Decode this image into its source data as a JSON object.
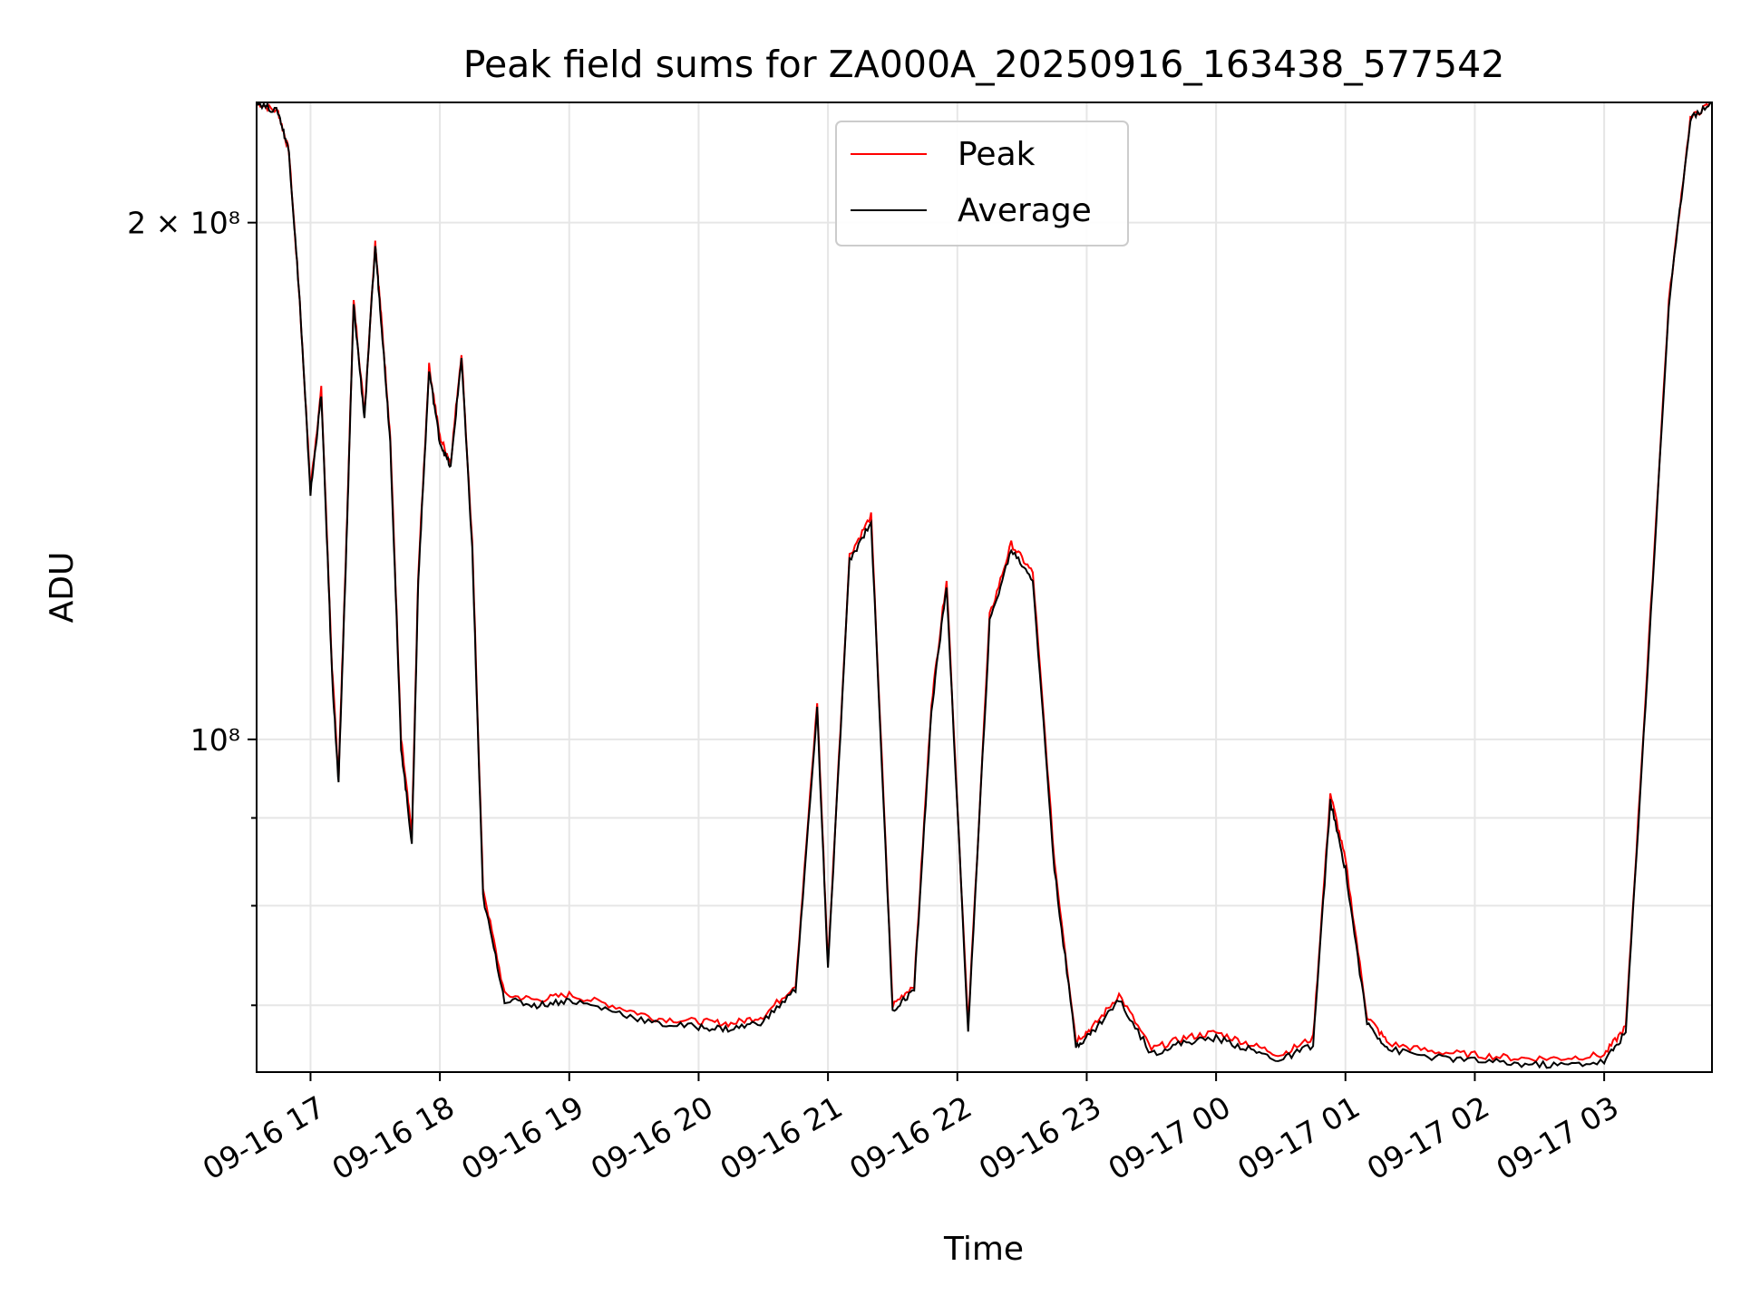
{
  "chart_data": {
    "type": "line",
    "title": "Peak field sums for ZA000A_20250916_163438_577542",
    "xlabel": "Time",
    "ylabel": "ADU",
    "yscale": "log",
    "ylim": [
      64000000,
      235000000
    ],
    "xlim": [
      "2025-09-16 16:35",
      "2025-09-17 03:50"
    ],
    "grid": true,
    "legend_position": "top-center",
    "x_ticks": [
      "09-16 17",
      "09-16 18",
      "09-16 19",
      "09-16 20",
      "09-16 21",
      "09-16 22",
      "09-16 23",
      "09-17 00",
      "09-17 01",
      "09-17 02",
      "09-17 03"
    ],
    "y_ticks": [
      {
        "label": "2 × 10⁸",
        "value": 200000000
      },
      {
        "label": "10⁸",
        "value": 100000000
      }
    ],
    "series": [
      {
        "name": "Peak",
        "color": "#ff0000",
        "x": [
          "2025-09-16 16:35",
          "2025-09-16 16:45",
          "2025-09-16 16:50",
          "2025-09-16 16:55",
          "2025-09-16 17:00",
          "2025-09-16 17:05",
          "2025-09-16 17:10",
          "2025-09-16 17:13",
          "2025-09-16 17:17",
          "2025-09-16 17:20",
          "2025-09-16 17:25",
          "2025-09-16 17:30",
          "2025-09-16 17:33",
          "2025-09-16 17:37",
          "2025-09-16 17:42",
          "2025-09-16 17:47",
          "2025-09-16 17:50",
          "2025-09-16 17:55",
          "2025-09-16 18:00",
          "2025-09-16 18:05",
          "2025-09-16 18:10",
          "2025-09-16 18:15",
          "2025-09-16 18:20",
          "2025-09-16 18:30",
          "2025-09-16 18:45",
          "2025-09-16 19:00",
          "2025-09-16 19:20",
          "2025-09-16 19:40",
          "2025-09-16 20:00",
          "2025-09-16 20:15",
          "2025-09-16 20:30",
          "2025-09-16 20:45",
          "2025-09-16 20:55",
          "2025-09-16 21:00",
          "2025-09-16 21:10",
          "2025-09-16 21:20",
          "2025-09-16 21:30",
          "2025-09-16 21:40",
          "2025-09-16 21:48",
          "2025-09-16 21:55",
          "2025-09-16 22:05",
          "2025-09-16 22:15",
          "2025-09-16 22:25",
          "2025-09-16 22:35",
          "2025-09-16 22:45",
          "2025-09-16 22:55",
          "2025-09-16 23:03",
          "2025-09-16 23:15",
          "2025-09-16 23:30",
          "2025-09-16 23:45",
          "2025-09-17 00:00",
          "2025-09-17 00:15",
          "2025-09-17 00:30",
          "2025-09-17 00:45",
          "2025-09-17 00:53",
          "2025-09-17 01:00",
          "2025-09-17 01:10",
          "2025-09-17 01:20",
          "2025-09-17 01:40",
          "2025-09-17 02:00",
          "2025-09-17 02:20",
          "2025-09-17 02:40",
          "2025-09-17 03:00",
          "2025-09-17 03:10",
          "2025-09-17 03:20",
          "2025-09-17 03:30",
          "2025-09-17 03:40",
          "2025-09-17 03:50"
        ],
        "values": [
          235000000,
          232000000,
          220000000,
          180000000,
          140000000,
          160000000,
          110000000,
          95000000,
          135000000,
          180000000,
          155000000,
          195000000,
          175000000,
          150000000,
          100000000,
          88000000,
          125000000,
          165000000,
          150000000,
          145000000,
          168000000,
          130000000,
          82000000,
          71000000,
          70500000,
          71000000,
          70000000,
          68800000,
          68500000,
          68300000,
          69000000,
          72000000,
          105000000,
          74000000,
          128000000,
          135000000,
          70000000,
          72000000,
          105000000,
          124000000,
          68000000,
          118000000,
          130000000,
          125000000,
          85000000,
          66800000,
          68000000,
          71000000,
          66000000,
          67000000,
          67500000,
          66500000,
          65500000,
          67000000,
          93000000,
          85000000,
          69000000,
          66500000,
          65800000,
          65500000,
          65200000,
          65200000,
          65500000,
          68000000,
          110000000,
          180000000,
          230000000,
          235000000
        ]
      },
      {
        "name": "Average",
        "color": "#000000",
        "x": [
          "2025-09-16 16:35",
          "2025-09-16 16:45",
          "2025-09-16 16:50",
          "2025-09-16 16:55",
          "2025-09-16 17:00",
          "2025-09-16 17:05",
          "2025-09-16 17:10",
          "2025-09-16 17:13",
          "2025-09-16 17:17",
          "2025-09-16 17:20",
          "2025-09-16 17:25",
          "2025-09-16 17:30",
          "2025-09-16 17:33",
          "2025-09-16 17:37",
          "2025-09-16 17:42",
          "2025-09-16 17:47",
          "2025-09-16 17:50",
          "2025-09-16 17:55",
          "2025-09-16 18:00",
          "2025-09-16 18:05",
          "2025-09-16 18:10",
          "2025-09-16 18:15",
          "2025-09-16 18:20",
          "2025-09-16 18:30",
          "2025-09-16 18:45",
          "2025-09-16 19:00",
          "2025-09-16 19:20",
          "2025-09-16 19:40",
          "2025-09-16 20:00",
          "2025-09-16 20:15",
          "2025-09-16 20:30",
          "2025-09-16 20:45",
          "2025-09-16 20:55",
          "2025-09-16 21:00",
          "2025-09-16 21:10",
          "2025-09-16 21:20",
          "2025-09-16 21:30",
          "2025-09-16 21:40",
          "2025-09-16 21:48",
          "2025-09-16 21:55",
          "2025-09-16 22:05",
          "2025-09-16 22:15",
          "2025-09-16 22:25",
          "2025-09-16 22:35",
          "2025-09-16 22:45",
          "2025-09-16 22:55",
          "2025-09-16 23:03",
          "2025-09-16 23:15",
          "2025-09-16 23:30",
          "2025-09-16 23:45",
          "2025-09-17 00:00",
          "2025-09-17 00:15",
          "2025-09-17 00:30",
          "2025-09-17 00:45",
          "2025-09-17 00:53",
          "2025-09-17 01:00",
          "2025-09-17 01:10",
          "2025-09-17 01:20",
          "2025-09-17 01:40",
          "2025-09-17 02:00",
          "2025-09-17 02:20",
          "2025-09-17 02:40",
          "2025-09-17 03:00",
          "2025-09-17 03:10",
          "2025-09-17 03:20",
          "2025-09-17 03:30",
          "2025-09-17 03:40",
          "2025-09-17 03:50"
        ],
        "values": [
          235000000,
          232000000,
          220000000,
          180000000,
          139000000,
          159000000,
          109000000,
          94000000,
          134000000,
          179000000,
          154000000,
          194000000,
          174000000,
          149000000,
          99000000,
          87000000,
          124000000,
          164000000,
          149000000,
          144000000,
          167000000,
          129000000,
          81000000,
          70500000,
          70000000,
          70500000,
          69500000,
          68300000,
          68000000,
          67800000,
          68500000,
          71500000,
          104000000,
          73500000,
          127000000,
          134000000,
          69500000,
          71500000,
          104000000,
          123000000,
          67600000,
          117000000,
          129000000,
          124000000,
          84000000,
          66300000,
          67600000,
          70500000,
          65600000,
          66600000,
          67000000,
          66000000,
          65000000,
          66400000,
          92000000,
          84000000,
          68400000,
          66000000,
          65300000,
          65000000,
          64700000,
          64600000,
          64900000,
          67500000,
          109000000,
          179000000,
          230000000,
          235000000
        ]
      }
    ]
  }
}
